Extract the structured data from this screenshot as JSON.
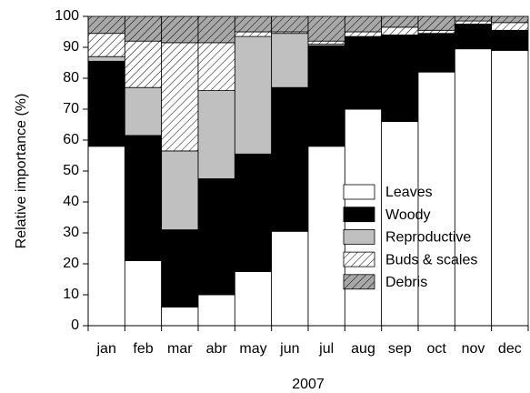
{
  "chart_data": {
    "type": "stacked_bar",
    "xlabel": "2007",
    "ylabel": "Relative importance (%)",
    "categories": [
      "jan",
      "feb",
      "mar",
      "abr",
      "may",
      "jun",
      "jul",
      "aug",
      "sep",
      "oct",
      "nov",
      "dec"
    ],
    "series": [
      {
        "name": "Leaves",
        "color": "#ffffff",
        "values": [
          58,
          21,
          6,
          10,
          17.5,
          30.5,
          58,
          70,
          66,
          82,
          89.5,
          89
        ]
      },
      {
        "name": "Woody",
        "color": "#000000",
        "values": [
          27.5,
          40.5,
          25,
          37.5,
          38,
          46.5,
          32.5,
          23.5,
          28,
          12.5,
          8,
          6.5
        ]
      },
      {
        "name": "Reproductive",
        "color": "#c0c0c0",
        "values": [
          1.5,
          15.5,
          25.5,
          28.5,
          38,
          17.5,
          0.5,
          0,
          0,
          0,
          0,
          0
        ]
      },
      {
        "name": "Buds & scales",
        "color": "#ffffff",
        "pattern": "hatch",
        "values": [
          7.5,
          15,
          35,
          15.5,
          1.5,
          0.5,
          1,
          1.5,
          2.5,
          1,
          1,
          2.5
        ]
      },
      {
        "name": "Debris",
        "color": "#a8a8a8",
        "pattern": "hatch",
        "values": [
          5.5,
          8,
          8.5,
          8.5,
          5,
          5,
          8,
          5,
          3.5,
          4.5,
          1.5,
          2
        ]
      }
    ],
    "ylim": [
      0,
      100
    ],
    "yticks": [
      0,
      10,
      20,
      30,
      40,
      50,
      60,
      70,
      80,
      90,
      100
    ],
    "legend": "lower right"
  }
}
